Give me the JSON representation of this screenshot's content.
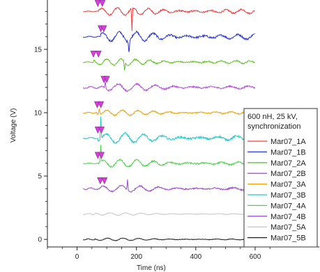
{
  "chart_data": {
    "type": "line",
    "title": "",
    "xlabel": "Time (ns)",
    "ylabel": "Voltage (V)",
    "xlim": [
      -100,
      680
    ],
    "ylim": [
      -0.6,
      18.9
    ],
    "x_ticks": [
      0,
      200,
      400,
      600
    ],
    "y_ticks": [
      0,
      5,
      10,
      15
    ],
    "grid": false,
    "legend_title_lines": [
      "600 nH, 25 kV,",
      "synchronization"
    ],
    "legend_position": "right",
    "series": [
      {
        "name": "Mar07_1A",
        "color": "#f03c3c",
        "offset": 18,
        "trigger": [
          70,
          85
        ],
        "amp_pre": 0.03,
        "amp_post": 0.35,
        "freq": 0.12,
        "decay": 650,
        "spike": {
          "t": 185,
          "amp": -1.8
        }
      },
      {
        "name": "Mar07_1B",
        "color": "#2a36d8",
        "offset": 16,
        "trigger": [
          80,
          90
        ],
        "amp_pre": 0.04,
        "amp_post": 0.45,
        "freq": 0.11,
        "decay": 600,
        "spike": {
          "t": 175,
          "amp": -1.0
        }
      },
      {
        "name": "Mar07_2A",
        "color": "#5fc421",
        "offset": 14,
        "trigger": [
          55,
          72
        ],
        "amp_pre": 0.03,
        "amp_post": 0.3,
        "freq": 0.13,
        "decay": 500,
        "spike": {
          "t": 160,
          "amp": -0.8
        }
      },
      {
        "name": "Mar07_2B",
        "color": "#b04ee0",
        "offset": 12,
        "trigger": [
          90,
          100
        ],
        "amp_pre": 0.08,
        "amp_post": 0.35,
        "freq": 0.1,
        "decay": 450,
        "spike": {
          "t": 95,
          "amp": 0.6
        }
      },
      {
        "name": "Mar07_3A",
        "color": "#f0a000",
        "offset": 10,
        "trigger": [
          68,
          80
        ],
        "amp_pre": 0.04,
        "amp_post": 0.25,
        "freq": 0.12,
        "decay": 500,
        "spike": {
          "t": 75,
          "amp": 0.6
        }
      },
      {
        "name": "Mar07_3B",
        "color": "#20c8c8",
        "offset": 8,
        "trigger": [
          70,
          82
        ],
        "amp_pre": 0.05,
        "amp_post": 0.45,
        "freq": 0.1,
        "decay": 550,
        "spike": {
          "t": 80,
          "amp": 1.8
        }
      },
      {
        "name": "Mar07_4A",
        "color": "#4cd24c",
        "offset": 6,
        "trigger": [
          70,
          82
        ],
        "amp_pre": 0.03,
        "amp_post": 0.35,
        "freq": 0.11,
        "decay": 500,
        "spike": {
          "t": 80,
          "amp": 1.3
        }
      },
      {
        "name": "Mar07_4B",
        "color": "#9a4ccc",
        "offset": 4,
        "trigger": [
          78,
          92
        ],
        "amp_pre": 0.06,
        "amp_post": 0.3,
        "freq": 0.1,
        "decay": 450,
        "spike": {
          "t": 170,
          "amp": 0.8
        }
      },
      {
        "name": "Mar07_5A",
        "color": "#c8c8c8",
        "offset": 2,
        "trigger": null,
        "amp_pre": 0.05,
        "amp_post": 0.12,
        "freq": 0.12,
        "decay": 400,
        "spike": null
      },
      {
        "name": "Mar07_5B",
        "color": "#202020",
        "offset": 0,
        "trigger": null,
        "amp_pre": 0.04,
        "amp_post": 0.12,
        "freq": 0.12,
        "decay": 400,
        "spike": null
      }
    ]
  }
}
